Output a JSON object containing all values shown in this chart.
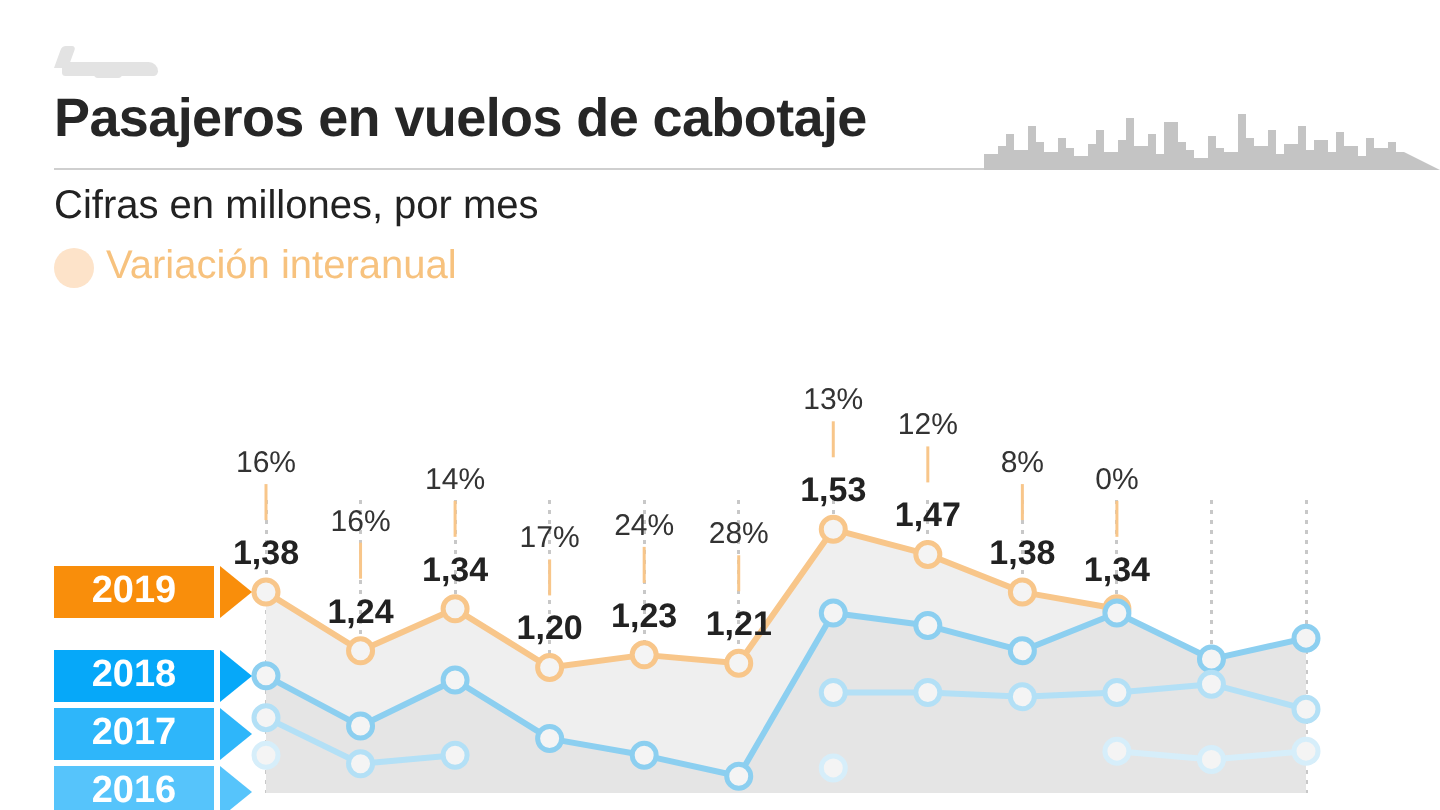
{
  "chart_data": {
    "type": "line",
    "title": "Pasajeros en vuelos de cabotaje",
    "subtitle": "Cifras en millones, por mes",
    "annotations": [
      "Variación interanual",
      "16%",
      "16%",
      "14%",
      "17%",
      "24%",
      "28%",
      "13%",
      "12%",
      "8%",
      "0%"
    ],
    "categories": [
      null,
      null,
      null,
      null,
      null,
      null,
      null,
      null,
      null,
      null,
      null,
      null
    ],
    "ylim": [
      0.9,
      1.6
    ],
    "tick_labels": false,
    "grid": "x",
    "marker": "circle",
    "line_style": "solid",
    "series": [
      {
        "name": "2019",
        "type": "area",
        "color": "#f8c68a",
        "values": [
          1.38,
          1.24,
          1.34,
          1.2,
          1.23,
          1.21,
          1.53,
          1.47,
          1.38,
          1.34,
          null,
          null
        ],
        "value_labels": [
          "1,38",
          "1,24",
          "1,34",
          "1,20",
          "1,23",
          "1,21",
          "1,53",
          "1,47",
          "1,38",
          "1,34",
          null,
          null
        ]
      },
      {
        "name": "2018",
        "type": "area",
        "color": "#8ccff0",
        "values": [
          1.18,
          1.06,
          1.17,
          1.03,
          0.99,
          0.94,
          1.33,
          1.3,
          1.24,
          1.33,
          1.22,
          1.27
        ]
      },
      {
        "name": "2017",
        "color": "#b3e0f6",
        "values": [
          1.08,
          0.97,
          0.99,
          null,
          null,
          null,
          1.14,
          1.14,
          1.13,
          1.14,
          1.16,
          1.1
        ]
      },
      {
        "name": "2016",
        "color": "#d6eefa",
        "values": [
          0.99,
          null,
          null,
          null,
          null,
          null,
          0.96,
          null,
          null,
          1.0,
          0.98,
          1.0
        ]
      }
    ]
  }
}
